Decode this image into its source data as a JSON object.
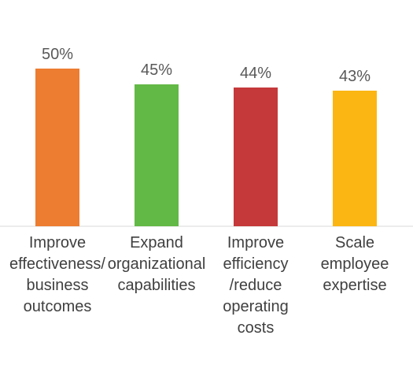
{
  "chart_data": {
    "type": "bar",
    "title": "",
    "xlabel": "",
    "ylabel": "",
    "ylim": [
      0,
      50
    ],
    "grid": false,
    "categories": [
      [
        "Improve",
        "effectiveness/",
        "business",
        "outcomes"
      ],
      [
        "Expand",
        "organizational",
        "capabilities"
      ],
      [
        "Improve",
        "efficiency",
        "/reduce",
        "operating",
        "costs"
      ],
      [
        "Scale",
        "employee",
        "expertise"
      ]
    ],
    "values": [
      50,
      45,
      44,
      43
    ],
    "value_labels": [
      "50%",
      "45%",
      "44%",
      "43%"
    ],
    "colors": [
      "#ED7D31",
      "#63B946",
      "#C5393A",
      "#FBB614"
    ]
  }
}
